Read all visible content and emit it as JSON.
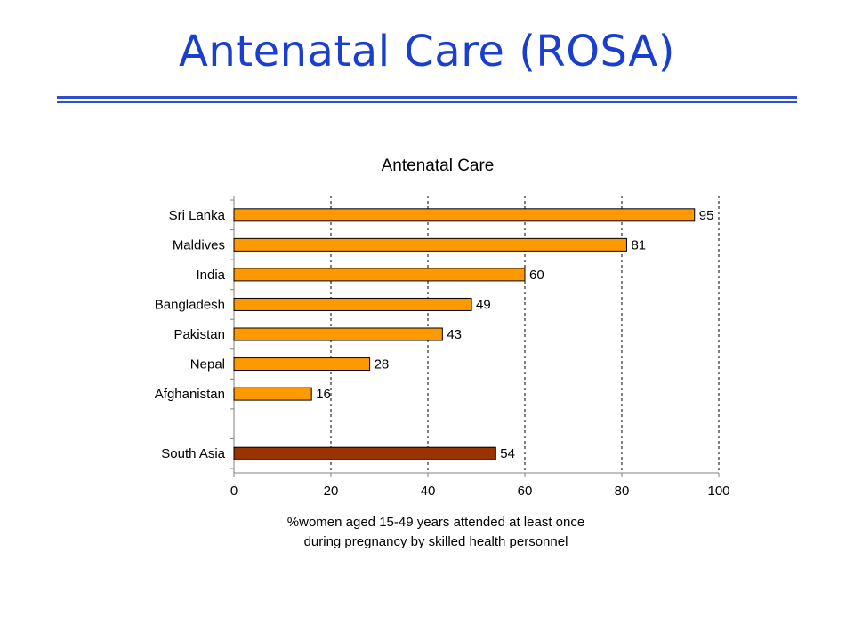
{
  "slide": {
    "title": "Antenatal Care (ROSA)"
  },
  "colors": {
    "title_text": "#1a3fcf",
    "title_rule": "#2f4fd0",
    "bar_country": "#ff9900",
    "bar_region": "#993300",
    "gridline": "#000000"
  },
  "chart_data": {
    "type": "bar",
    "orientation": "horizontal",
    "title": "Antenatal Care",
    "xlabel": "%women aged 15-49 years attended at least once during pregnancy by skilled health personnel",
    "xlabel_lines": [
      "%women aged 15-49 years attended at least once",
      "during pregnancy by skilled health personnel"
    ],
    "ylabel": "",
    "xlim": [
      0,
      100
    ],
    "xticks": [
      0,
      20,
      40,
      60,
      80,
      100
    ],
    "grid": "vertical dashed",
    "categories": [
      "Sri Lanka",
      "Maldives",
      "India",
      "Bangladesh",
      "Pakistan",
      "Nepal",
      "Afghanistan",
      "",
      "South Asia"
    ],
    "values": [
      95,
      81,
      60,
      49,
      43,
      28,
      16,
      null,
      54
    ],
    "data_labels": [
      "95",
      "81",
      "60",
      "49",
      "43",
      "28",
      "16",
      "",
      "54"
    ],
    "bar_colors": [
      "#ff9900",
      "#ff9900",
      "#ff9900",
      "#ff9900",
      "#ff9900",
      "#ff9900",
      "#ff9900",
      "",
      "#993300"
    ]
  }
}
